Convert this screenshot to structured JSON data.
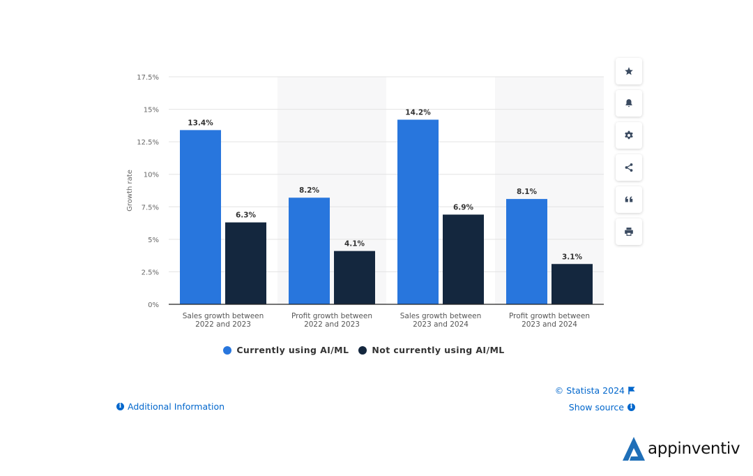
{
  "chart_data": {
    "type": "bar",
    "ylabel": "Growth rate",
    "ylim": [
      0,
      17.5
    ],
    "yticks": [
      0,
      2.5,
      5,
      7.5,
      10,
      12.5,
      15,
      17.5
    ],
    "ytick_labels": [
      "0%",
      "2.5%",
      "5%",
      "7.5%",
      "10%",
      "12.5%",
      "15%",
      "17.5%"
    ],
    "categories": [
      [
        "Sales growth between",
        "2022 and 2023"
      ],
      [
        "Profit growth between",
        "2022 and 2023"
      ],
      [
        "Sales growth between",
        "2023 and 2024"
      ],
      [
        "Profit growth between",
        "2023 and 2024"
      ]
    ],
    "series": [
      {
        "name": "Currently using AI/ML",
        "color": "#2876dd",
        "values": [
          13.4,
          8.2,
          14.2,
          8.1
        ],
        "labels": [
          "13.4%",
          "8.2%",
          "14.2%",
          "8.1%"
        ]
      },
      {
        "name": "Not currently using AI/ML",
        "color": "#14273e",
        "values": [
          6.3,
          4.1,
          6.9,
          3.1
        ],
        "labels": [
          "6.3%",
          "4.1%",
          "6.9%",
          "3.1%"
        ]
      }
    ],
    "grid": true,
    "legend": "bottom"
  },
  "toolbar": {
    "icons": [
      "star-icon",
      "bell-icon",
      "gear-icon",
      "share-icon",
      "quote-icon",
      "print-icon"
    ]
  },
  "footer": {
    "copyright": "© Statista 2024",
    "show_source": "Show source",
    "additional_info": "Additional Information"
  },
  "brand": {
    "name": "appinventiv"
  },
  "colors": {
    "accent": "#0066cc",
    "series_1": "#2876dd",
    "series_2": "#14273e"
  }
}
